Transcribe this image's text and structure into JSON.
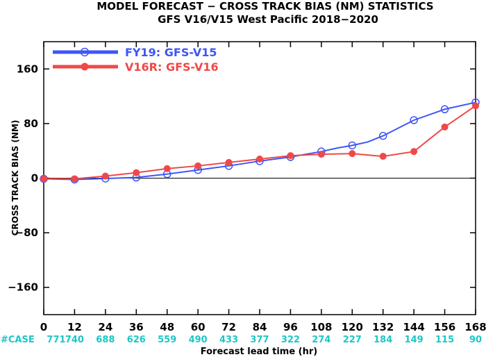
{
  "chart_data": {
    "type": "line",
    "title": "MODEL FORECAST − CROSS TRACK BIAS (NM) STATISTICS",
    "subtitle": "GFS V16/V15 West Pacific 2018−2020",
    "ylabel": "CROSS TRACK BIAS (NM)",
    "xlabel": "Forecast lead time (hr)",
    "x": [
      0,
      12,
      24,
      36,
      48,
      60,
      72,
      84,
      96,
      108,
      120,
      132,
      144,
      156,
      168
    ],
    "xlim": [
      0,
      168
    ],
    "ylim": [
      -200,
      200
    ],
    "yticks": [
      -160,
      -80,
      0,
      80,
      160
    ],
    "grid": false,
    "legend_position": "top-left",
    "case_label": "#CASE",
    "case_counts": [
      "771",
      "740",
      "688",
      "626",
      "559",
      "490",
      "433",
      "377",
      "322",
      "274",
      "227",
      "184",
      "149",
      "115",
      "90"
    ],
    "series": [
      {
        "name": "FY19: GFS-V15",
        "color": "#3d56f5",
        "marker": "open-circle",
        "x": [
          0,
          12,
          24,
          36,
          48,
          60,
          72,
          84,
          96,
          108,
          114,
          120,
          126,
          132,
          144,
          156,
          168
        ],
        "y": [
          -1,
          -2,
          -0.5,
          1,
          6,
          12,
          18,
          25,
          31,
          39,
          44,
          48,
          53,
          62,
          85,
          101,
          111
        ],
        "marker_x": [
          0,
          12,
          24,
          36,
          48,
          60,
          72,
          84,
          96,
          108,
          120,
          132,
          144,
          156,
          168
        ]
      },
      {
        "name": "V16R: GFS-V16",
        "color": "#f04848",
        "marker": "filled-circle",
        "x": [
          0,
          12,
          24,
          36,
          48,
          60,
          72,
          84,
          96,
          108,
          120,
          132,
          144,
          156,
          168
        ],
        "y": [
          -1,
          -1,
          3,
          8,
          14,
          18,
          23,
          28,
          33,
          35,
          36,
          32,
          39,
          75,
          106
        ],
        "marker_x": [
          0,
          12,
          24,
          36,
          48,
          60,
          72,
          84,
          96,
          108,
          120,
          132,
          144,
          156,
          168
        ]
      }
    ]
  }
}
